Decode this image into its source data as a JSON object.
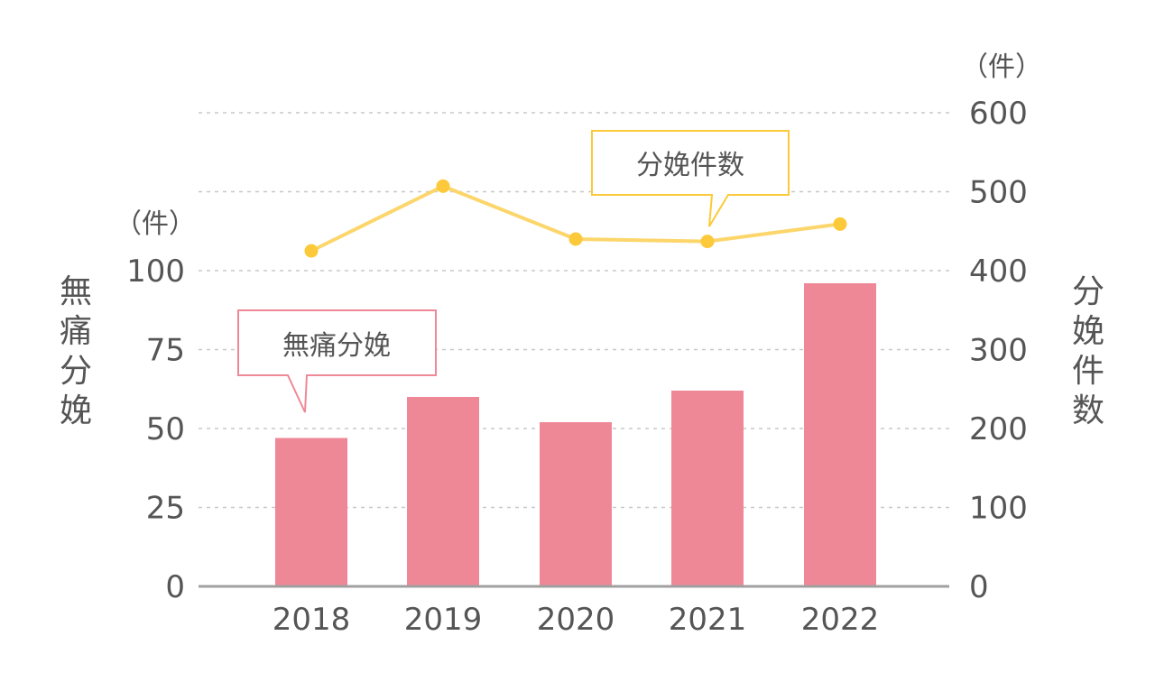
{
  "chart_data": {
    "type": "bar+line",
    "categories": [
      "2018",
      "2019",
      "2020",
      "2021",
      "2022"
    ],
    "series": [
      {
        "name": "無痛分娩",
        "type": "bar",
        "axis": "left",
        "values": [
          47,
          60,
          52,
          62,
          96
        ]
      },
      {
        "name": "分娩件数",
        "type": "line",
        "axis": "right",
        "values": [
          425,
          507,
          440,
          437,
          459
        ]
      }
    ],
    "y_left": {
      "label": "無痛分娩",
      "unit": "（件）",
      "ticks": [
        "0",
        "25",
        "50",
        "75",
        "100"
      ],
      "range": [
        0,
        150
      ]
    },
    "y_right": {
      "label": "分娩件数",
      "unit": "（件）",
      "ticks": [
        "0",
        "100",
        "200",
        "300",
        "400",
        "500",
        "600"
      ],
      "range": [
        0,
        600
      ]
    },
    "grid": true,
    "colors": {
      "bar": "#ef8896",
      "line": "#fcd66b",
      "point": "#fcc93a",
      "grid": "#c8c8c8",
      "baseline": "#a0a0a0",
      "text": "#555555"
    },
    "callouts": {
      "bar": "無痛分娩",
      "line": "分娩件数"
    }
  }
}
